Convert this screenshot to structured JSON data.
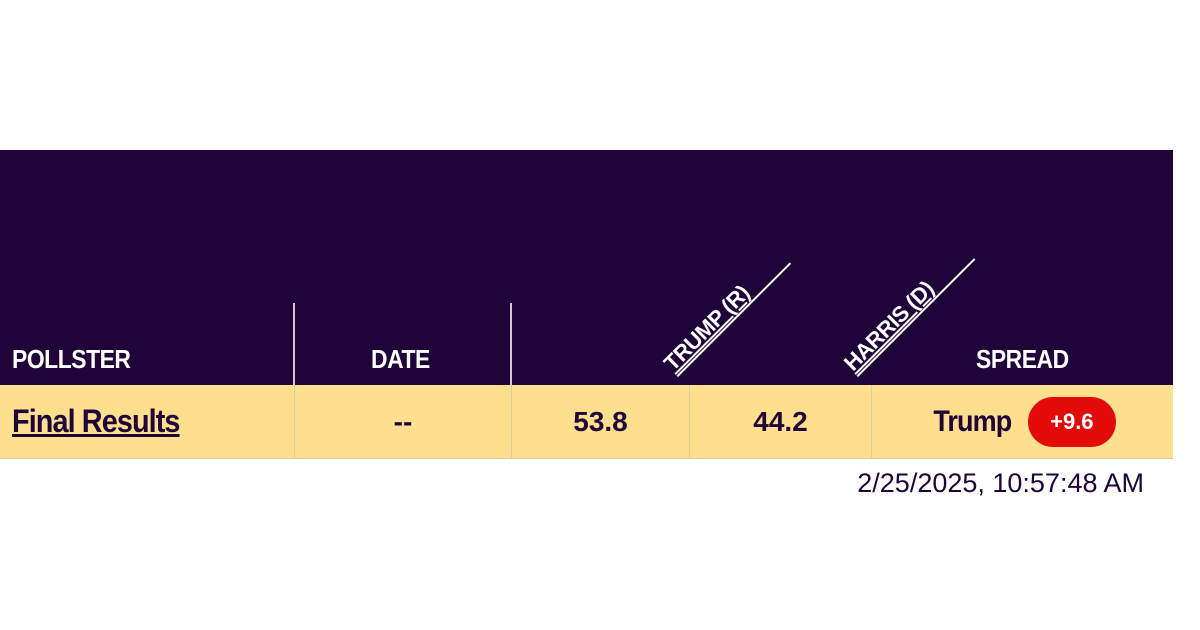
{
  "table": {
    "headers": {
      "pollster": "POLLSTER",
      "date": "DATE",
      "trump": "TRUMP (R)",
      "harris": "HARRIS (D)",
      "spread": "SPREAD"
    },
    "rows": [
      {
        "pollster": "Final Results",
        "date": "--",
        "trump": "53.8",
        "harris": "44.2",
        "spread_name": "Trump",
        "spread_value": "+9.6"
      }
    ]
  },
  "timestamp": "2/25/2025, 10:57:48 AM",
  "colors": {
    "header_bg": "#1f0439",
    "row_bg": "#fddf8e",
    "spread_badge": "#e30a0a"
  }
}
